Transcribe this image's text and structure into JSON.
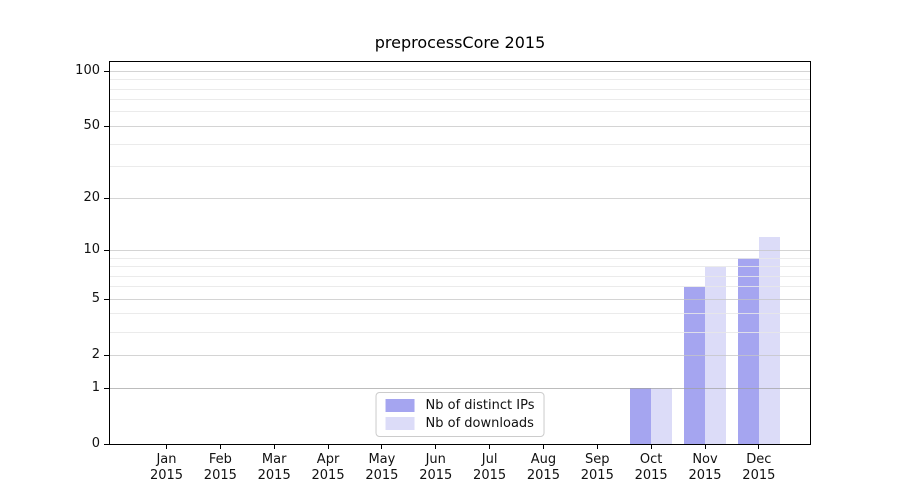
{
  "chart_data": {
    "type": "bar",
    "title": "preprocessCore 2015",
    "categories": [
      "Jan",
      "Feb",
      "Mar",
      "Apr",
      "May",
      "Jun",
      "Jul",
      "Aug",
      "Sep",
      "Oct",
      "Nov",
      "Dec"
    ],
    "category_year": "2015",
    "series": [
      {
        "name": "Nb of distinct IPs",
        "color": "#a5a5f0",
        "values": [
          0,
          0,
          0,
          0,
          0,
          0,
          0,
          0,
          0,
          1,
          6,
          9
        ]
      },
      {
        "name": "Nb of downloads",
        "color": "#dcdcf8",
        "values": [
          0,
          0,
          0,
          0,
          0,
          0,
          0,
          0,
          0,
          1,
          8,
          12
        ]
      }
    ],
    "yscale": "log1p",
    "ylim": [
      0,
      112
    ],
    "y_major_ticks": [
      0,
      1,
      2,
      5,
      10,
      20,
      50,
      100
    ],
    "y_minor_gridlines": [
      3,
      4,
      6,
      7,
      8,
      9,
      30,
      40,
      60,
      70,
      80,
      90
    ],
    "grid": true,
    "legend_position": "lower center"
  }
}
